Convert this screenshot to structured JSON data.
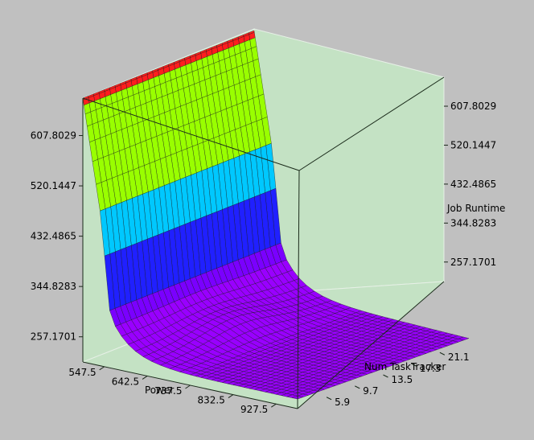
{
  "chart_data": {
    "type": "surface3d",
    "title": "",
    "xlabel": "Power",
    "ylabel": "Num TaskTracker",
    "zlabel": "Job Runtime",
    "x_ticks": [
      "547.5",
      "642.5",
      "737.5",
      "832.5",
      "927.5"
    ],
    "y_ticks": [
      "5.9",
      "9.7",
      "13.5",
      "17.3",
      "21.1"
    ],
    "z_ticks": [
      "257.1701",
      "344.8283",
      "432.4865",
      "520.1447",
      "607.8029"
    ],
    "x_range": [
      500,
      975
    ],
    "y_range": [
      2,
      25
    ],
    "z_range": [
      213.3,
      673
    ],
    "surface": {
      "description_free_model": true,
      "peak_runtime": 673,
      "floor_runtime": 213.3,
      "wall_drop_power": [
        500,
        560
      ]
    },
    "colormap": [
      "#9900ff",
      "#7a00ff",
      "#2020ff",
      "#00c8ff",
      "#99ff00",
      "#ff1e1e"
    ],
    "grid": false
  }
}
